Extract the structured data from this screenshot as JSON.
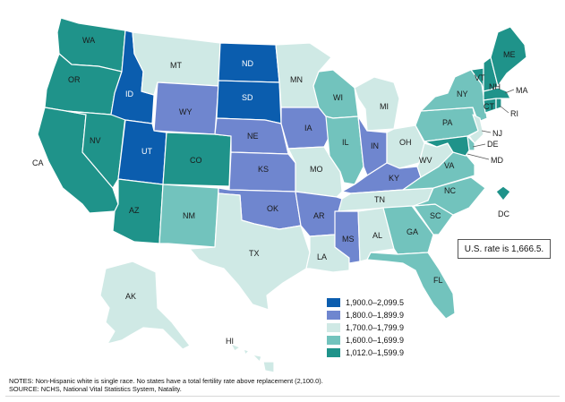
{
  "us_rate_text": "U.S. rate is 1,666.5.",
  "legend": [
    {
      "label": "1,900.0–2,099.5",
      "color": "#0b5dae"
    },
    {
      "label": "1,800.0–1,899.9",
      "color": "#6f86cf"
    },
    {
      "label": "1,700.0–1,799.9",
      "color": "#cfe9e5"
    },
    {
      "label": "1,600.0–1,699.9",
      "color": "#72c3bd"
    },
    {
      "label": "1,012.0–1,599.9",
      "color": "#1f938a"
    }
  ],
  "notes": {
    "line1": "NOTES: Non-Hispanic white is single race. No states have a total fertility rate above replacement (2,100.0).",
    "line2": "SOURCE: NCHS, National Vital Statistics System, Natality."
  },
  "state_labels": {
    "WA": "WA",
    "OR": "OR",
    "CA": "CA",
    "NV": "NV",
    "ID": "ID",
    "MT": "MT",
    "WY": "WY",
    "UT": "UT",
    "AZ": "AZ",
    "CO": "CO",
    "NM": "NM",
    "ND": "ND",
    "SD": "SD",
    "NE": "NE",
    "KS": "KS",
    "OK": "OK",
    "TX": "TX",
    "MN": "MN",
    "IA": "IA",
    "MO": "MO",
    "AR": "AR",
    "LA": "LA",
    "WI": "WI",
    "IL": "IL",
    "MI": "MI",
    "IN": "IN",
    "OH": "OH",
    "KY": "KY",
    "TN": "TN",
    "MS": "MS",
    "AL": "AL",
    "GA": "GA",
    "FL": "FL",
    "SC": "SC",
    "NC": "NC",
    "VA": "VA",
    "WV": "WV",
    "PA": "PA",
    "NY": "NY",
    "VT": "VT",
    "NH": "NH",
    "ME": "ME",
    "MA": "MA",
    "RI": "RI",
    "CT": "CT",
    "NJ": "NJ",
    "DE": "DE",
    "MD": "MD",
    "DC": "DC",
    "AK": "AK",
    "HI": "HI"
  },
  "state_class": {
    "WA": 5,
    "OR": 5,
    "CA": 5,
    "NV": 5,
    "ID": 1,
    "MT": 3,
    "WY": 2,
    "UT": 1,
    "AZ": 5,
    "CO": 5,
    "NM": 4,
    "ND": 1,
    "SD": 1,
    "NE": 2,
    "KS": 2,
    "OK": 2,
    "TX": 3,
    "MN": 3,
    "IA": 2,
    "MO": 3,
    "AR": 2,
    "LA": 3,
    "WI": 4,
    "IL": 4,
    "MI": 3,
    "IN": 2,
    "OH": 3,
    "KY": 2,
    "TN": 3,
    "MS": 2,
    "AL": 3,
    "GA": 4,
    "FL": 4,
    "SC": 4,
    "NC": 4,
    "VA": 4,
    "WV": 3,
    "PA": 4,
    "NY": 4,
    "VT": 5,
    "NH": 5,
    "ME": 5,
    "MA": 5,
    "RI": 5,
    "CT": 5,
    "NJ": 3,
    "DE": 4,
    "MD": 5,
    "DC": 5,
    "AK": 3,
    "HI": 3
  }
}
